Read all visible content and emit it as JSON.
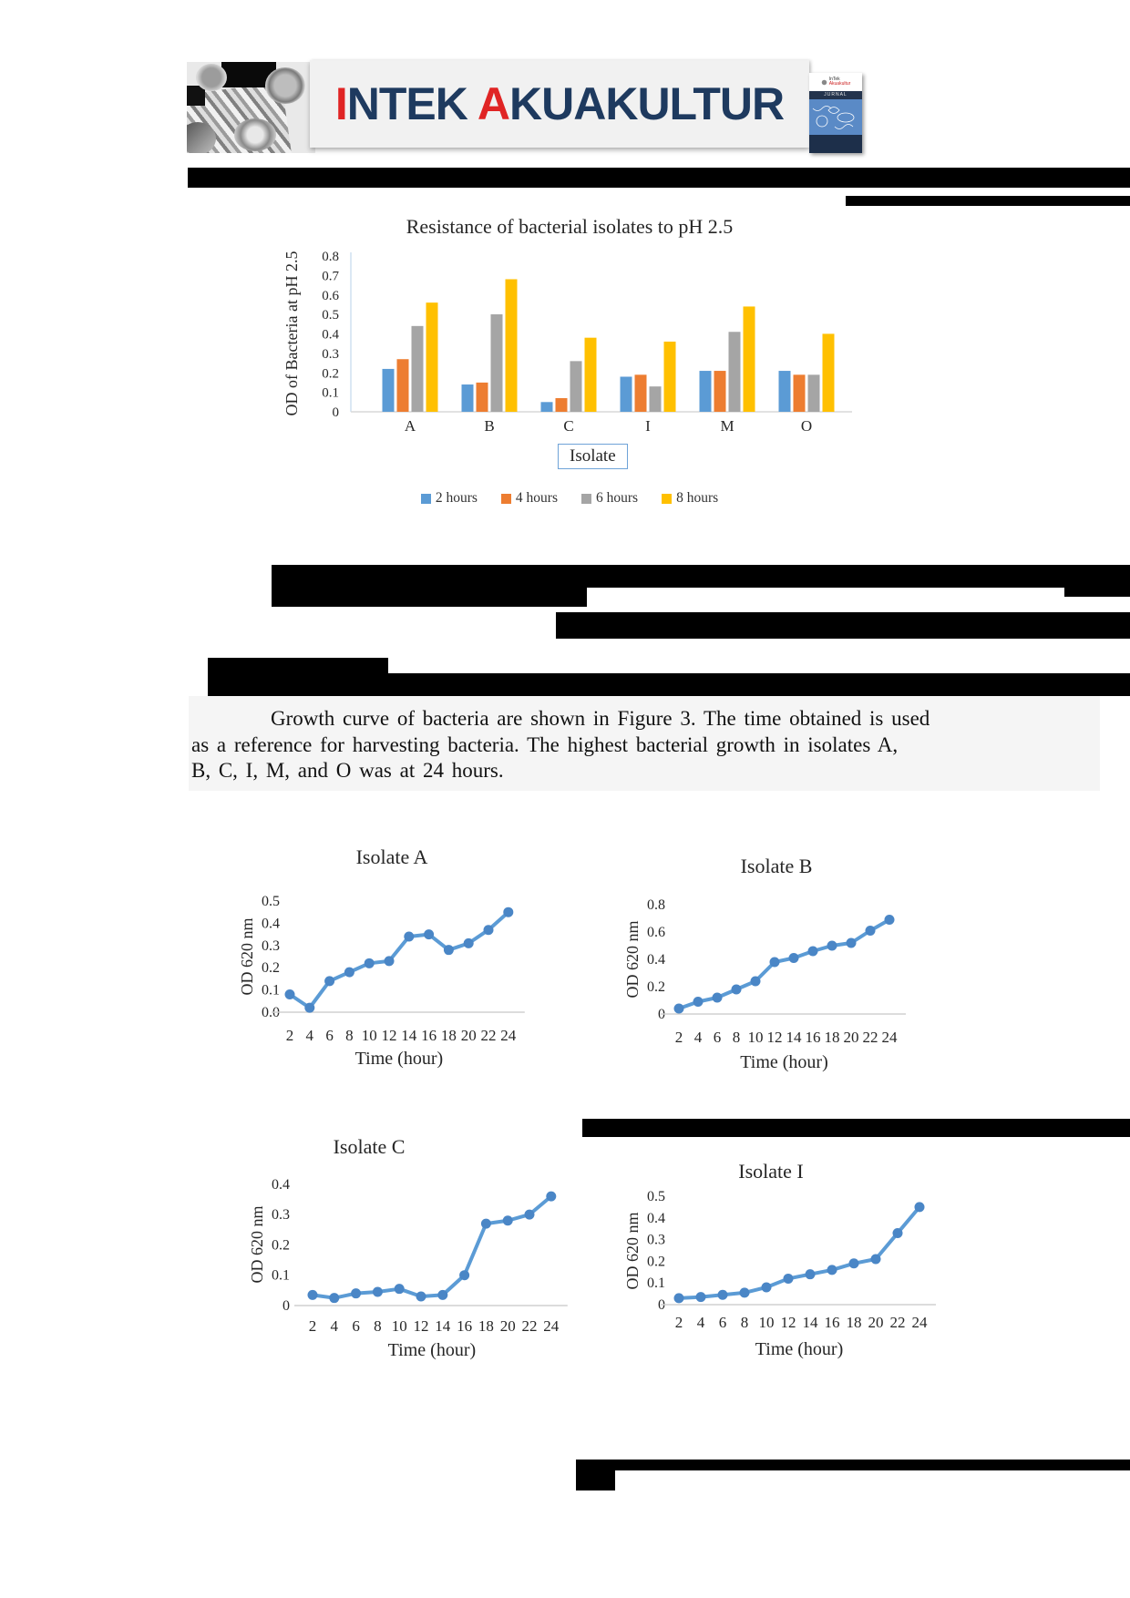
{
  "header": {
    "title_segments": [
      {
        "text": "I",
        "color": "#e02424"
      },
      {
        "text": "NTEK ",
        "color": "#1e3a5f"
      },
      {
        "text": "A",
        "color": "#e02424"
      },
      {
        "text": "KUAKULTUR",
        "color": "#1e3a5f"
      }
    ],
    "cover": {
      "logo_line1": "InTek",
      "logo_line2": "Akuakultur",
      "band": "JURNAL"
    }
  },
  "paragraph": {
    "lines": [
      "Growth curve of bacteria are shown in Figure 3. The time obtained is used",
      "as a reference for harvesting bacteria. The highest bacterial growth in isolates A,",
      "B, C, I, M, and O was at 24 hours."
    ]
  },
  "chart_data": [
    {
      "type": "bar",
      "title": "Resistance of bacterial isolates to pH 2.5",
      "ylabel": "OD of Bacteria at pH 2.5",
      "xlabel": "Isolate",
      "categories": [
        "A",
        "B",
        "C",
        "I",
        "M",
        "O"
      ],
      "series": [
        {
          "name": "2 hours",
          "color": "#5B9BD5",
          "values": [
            0.22,
            0.14,
            0.05,
            0.18,
            0.21,
            0.21
          ]
        },
        {
          "name": "4 hours",
          "color": "#ED7D31",
          "values": [
            0.27,
            0.15,
            0.07,
            0.19,
            0.21,
            0.19
          ]
        },
        {
          "name": "6 hours",
          "color": "#A5A5A5",
          "values": [
            0.44,
            0.5,
            0.26,
            0.13,
            0.41,
            0.19
          ]
        },
        {
          "name": "8 hours",
          "color": "#FFC000",
          "values": [
            0.56,
            0.68,
            0.38,
            0.36,
            0.54,
            0.4
          ]
        }
      ],
      "ylim": [
        0,
        0.8
      ],
      "ytick_labels": [
        "0",
        "0.1",
        "0.2",
        "0.3",
        "0.4",
        "0.5",
        "0.6",
        "0.7",
        "0.8"
      ],
      "grid": false,
      "legend_position": "bottom"
    },
    {
      "type": "line",
      "title": "Isolate A",
      "ylabel": "OD 620 nm",
      "xlabel": "Time (hour)",
      "x": [
        2,
        4,
        6,
        8,
        10,
        12,
        14,
        16,
        18,
        20,
        22,
        24
      ],
      "values": [
        0.08,
        0.02,
        0.14,
        0.18,
        0.22,
        0.23,
        0.34,
        0.35,
        0.28,
        0.31,
        0.37,
        0.45
      ],
      "ylim": [
        0,
        0.5
      ],
      "ytick_labels": [
        "0.0",
        "0.1",
        "0.2",
        "0.3",
        "0.4",
        "0.5"
      ],
      "line_color": "#5b9bd5",
      "marker_color": "#4a86c6",
      "grid": false
    },
    {
      "type": "line",
      "title": "Isolate B",
      "ylabel": "OD 620 nm",
      "xlabel": "Time (hour)",
      "x": [
        2,
        4,
        6,
        8,
        10,
        12,
        14,
        16,
        18,
        20,
        22,
        24
      ],
      "values": [
        0.04,
        0.09,
        0.12,
        0.18,
        0.24,
        0.38,
        0.41,
        0.46,
        0.5,
        0.52,
        0.61,
        0.69
      ],
      "ylim": [
        0,
        0.8
      ],
      "ytick_labels": [
        "0",
        "0.2",
        "0.4",
        "0.6",
        "0.8"
      ],
      "line_color": "#5b9bd5",
      "marker_color": "#4a86c6",
      "grid": false
    },
    {
      "type": "line",
      "title": "Isolate C",
      "ylabel": "OD 620 nm",
      "xlabel": "Time (hour)",
      "x": [
        2,
        4,
        6,
        8,
        10,
        12,
        14,
        16,
        18,
        20,
        22,
        24
      ],
      "values": [
        0.035,
        0.025,
        0.04,
        0.045,
        0.055,
        0.03,
        0.035,
        0.1,
        0.27,
        0.28,
        0.3,
        0.36
      ],
      "ylim": [
        0,
        0.4
      ],
      "ytick_labels": [
        "0",
        "0.1",
        "0.2",
        "0.3",
        "0.4"
      ],
      "line_color": "#5b9bd5",
      "marker_color": "#4a86c6",
      "grid": false
    },
    {
      "type": "line",
      "title": "Isolate I",
      "ylabel": "OD 620 nm",
      "xlabel": "Time (hour)",
      "x": [
        2,
        4,
        6,
        8,
        10,
        12,
        14,
        16,
        18,
        20,
        22,
        24
      ],
      "values": [
        0.03,
        0.035,
        0.045,
        0.055,
        0.08,
        0.12,
        0.14,
        0.16,
        0.19,
        0.21,
        0.33,
        0.45
      ],
      "ylim": [
        0,
        0.5
      ],
      "ytick_labels": [
        "0",
        "0.1",
        "0.2",
        "0.3",
        "0.4",
        "0.5"
      ],
      "line_color": "#5b9bd5",
      "marker_color": "#4a86c6",
      "grid": false
    }
  ]
}
